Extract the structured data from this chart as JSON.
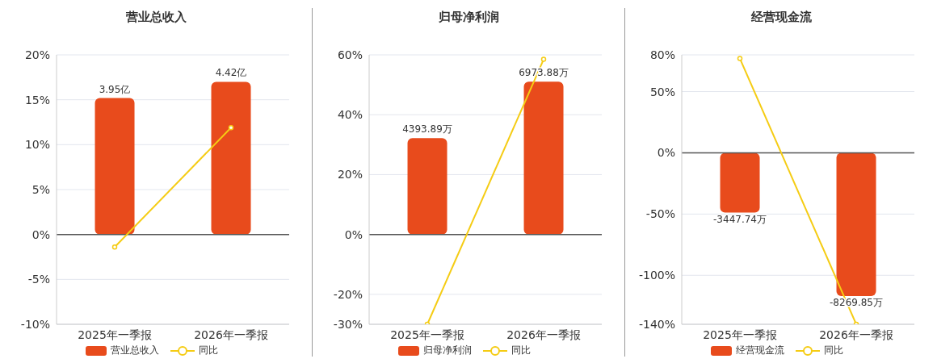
{
  "chart_data": [
    {
      "type": "bar",
      "title": "营业总收入",
      "categories": [
        "2025年一季报",
        "2026年一季报"
      ],
      "series": [
        {
          "name": "营业总收入",
          "axis": "y2",
          "color": "#e84b1c",
          "values": [
            3.95,
            4.42
          ],
          "value_labels": [
            "3.95亿",
            "4.42亿"
          ]
        },
        {
          "name": "同比",
          "type": "line",
          "color": "#f5cc14",
          "values": [
            -1.4,
            11.9
          ]
        }
      ],
      "ylim": [
        -10,
        20
      ],
      "yticks": [
        {
          "value": -10,
          "label": "-10%"
        },
        {
          "value": -5,
          "label": "-5%"
        },
        {
          "value": 0,
          "label": "0%"
        },
        {
          "value": 5,
          "label": "5%"
        },
        {
          "value": 10,
          "label": "10%"
        },
        {
          "value": 15,
          "label": "15%"
        },
        {
          "value": 20,
          "label": "20%"
        }
      ],
      "y2lim": [
        -2.6,
        5.2
      ],
      "grid": "y",
      "legend": "bottom",
      "marker": "circle",
      "ref_lines": [
        {
          "axis": "y",
          "value": 0,
          "color": "#555555"
        }
      ]
    },
    {
      "type": "bar",
      "title": "归母净利润",
      "categories": [
        "2025年一季报",
        "2026年一季报"
      ],
      "series": [
        {
          "name": "归母净利润",
          "axis": "y2",
          "color": "#e84b1c",
          "values": [
            4393.89,
            6973.88
          ],
          "value_labels": [
            "4393.89万",
            "6973.88万"
          ]
        },
        {
          "name": "同比",
          "type": "line",
          "color": "#f5cc14",
          "values": [
            -30,
            58.5
          ]
        }
      ],
      "ylim": [
        -30,
        60
      ],
      "yticks": [
        {
          "value": -30,
          "label": "-30%"
        },
        {
          "value": -20,
          "label": "-20%"
        },
        {
          "value": 0,
          "label": "0%"
        },
        {
          "value": 20,
          "label": "20%"
        },
        {
          "value": 40,
          "label": "40%"
        },
        {
          "value": 60,
          "label": "60%"
        }
      ],
      "y2lim": [
        -4100,
        8200
      ],
      "grid": "y",
      "legend": "bottom",
      "marker": "circle",
      "ref_lines": [
        {
          "axis": "y",
          "value": 0,
          "color": "#555555"
        }
      ]
    },
    {
      "type": "bar",
      "title": "经营现金流",
      "categories": [
        "2025年一季报",
        "2026年一季报"
      ],
      "series": [
        {
          "name": "经营现金流",
          "axis": "y2",
          "color": "#e84b1c",
          "values": [
            -3447.74,
            -8269.85
          ],
          "value_labels": [
            "-3447.74万",
            "-8269.85万"
          ]
        },
        {
          "name": "同比",
          "type": "line",
          "color": "#f5cc14",
          "values": [
            77,
            -140
          ]
        }
      ],
      "ylim": [
        -140,
        80
      ],
      "yticks": [
        {
          "value": -140,
          "label": "-140%"
        },
        {
          "value": -100,
          "label": "-100%"
        },
        {
          "value": -50,
          "label": "-50%"
        },
        {
          "value": 0,
          "label": "0%"
        },
        {
          "value": 50,
          "label": "50%"
        },
        {
          "value": 80,
          "label": "80%"
        }
      ],
      "y2lim": [
        -9900,
        5660
      ],
      "grid": "y",
      "legend": "bottom",
      "marker": "circle",
      "ref_lines": [
        {
          "axis": "y",
          "value": 0,
          "color": "#555555"
        }
      ]
    }
  ]
}
